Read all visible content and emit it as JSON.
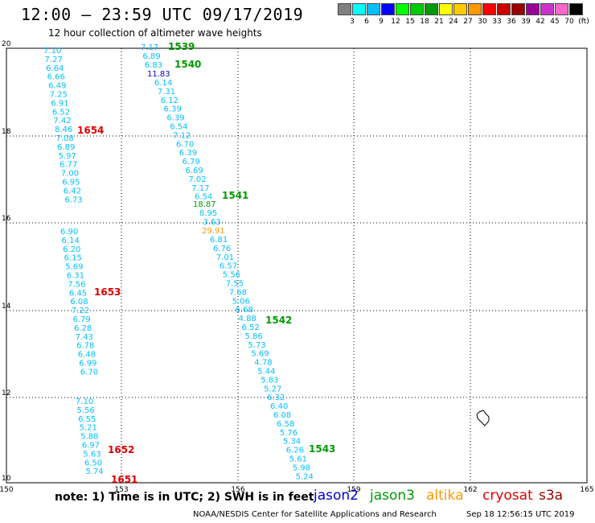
{
  "title": "12:00 – 23:59 UTC 09/17/2019",
  "subtitle": "12 hour collection of altimeter wave heights",
  "legend": {
    "colors": [
      "#808080",
      "#00ffff",
      "#00bfff",
      "#0000ff",
      "#00ff00",
      "#00cc00",
      "#009900",
      "#ffff00",
      "#ffcc00",
      "#ff9900",
      "#ff0000",
      "#cc0000",
      "#990000",
      "#990099",
      "#cc33cc",
      "#ff66cc",
      "#000000"
    ],
    "labels": [
      "3",
      "6",
      "9",
      "12",
      "15",
      "18",
      "21",
      "24",
      "27",
      "30",
      "33",
      "36",
      "39",
      "42",
      "45",
      "70",
      "(ft)"
    ]
  },
  "axes": {
    "lon_ticks": [
      "150",
      "153",
      "156",
      "159",
      "162",
      "165"
    ],
    "lat_ticks": [
      "20",
      "18",
      "16",
      "14",
      "12",
      "10"
    ]
  },
  "tracks": [
    {
      "color": "#00bfff",
      "values": [
        "7.10",
        "7.27",
        "6.64",
        "6.66",
        "6.49",
        "7.25",
        "6.91",
        "6.52",
        "7.42",
        "8.46",
        "7.08",
        "6.89",
        "5.97",
        "6.77",
        "7.00",
        "6.95",
        "6.42",
        "6.73"
      ]
    },
    {
      "color": "#00bfff",
      "values": [
        "6.90",
        "6.14",
        "6.20",
        "6.15",
        "5.69",
        "6.31",
        "7.56",
        "6.45",
        "6.08",
        "7.22",
        "6.79",
        "6.28",
        "7.43",
        "6.78",
        "6.48",
        "6.99",
        "6.70"
      ]
    },
    {
      "color": "#00bfff",
      "values": [
        "7.10",
        "5.56",
        "6.55",
        "5.21",
        "5.88",
        "6.97",
        "5.63",
        "6.50",
        "5.74"
      ]
    },
    {
      "color": "#00bfff",
      "values": [
        "7.17",
        "6.89",
        "6.83"
      ]
    },
    {
      "color": "#00bfff",
      "values": [
        "6.14",
        "7.31",
        "6.12",
        "6.39",
        "6.39",
        "6.54",
        "7.12",
        "6.70",
        "6.39",
        "6.79",
        "6.69",
        "7.02",
        "7.17",
        "6.54"
      ]
    },
    {
      "color": "#00bfff",
      "values": [
        "8.95",
        "3.63"
      ]
    },
    {
      "color": "#00bfff",
      "values": [
        "6.81",
        "6.76",
        "7.01",
        "6.57",
        "5.56",
        "7.55",
        "7.68",
        "5.06",
        "6.68",
        "4.88",
        "6.52",
        "5.86",
        "5.73",
        "5.69",
        "4.78",
        "5.44",
        "5.83",
        "5.27",
        "6.32",
        "6.40",
        "6.08",
        "6.58",
        "5.76",
        "5.34",
        "6.26",
        "5.61",
        "5.98",
        "5.24"
      ]
    }
  ],
  "special_values": [
    {
      "value": "11.83",
      "color": "#0000cc"
    },
    {
      "value": "18.87",
      "color": "#009900"
    },
    {
      "value": "29.91",
      "color": "#ff9900"
    }
  ],
  "times": [
    {
      "label": "1539",
      "color": "#009900"
    },
    {
      "label": "1540",
      "color": "#009900"
    },
    {
      "label": "1654",
      "color": "#dd0000"
    },
    {
      "label": "1541",
      "color": "#009900"
    },
    {
      "label": "1653",
      "color": "#dd0000"
    },
    {
      "label": "1542",
      "color": "#009900"
    },
    {
      "label": "1652",
      "color": "#dd0000"
    },
    {
      "label": "1543",
      "color": "#009900"
    },
    {
      "label": "1651",
      "color": "#dd0000"
    }
  ],
  "note": "note:  1) Time is in UTC;  2) SWH is in feet",
  "satellites": [
    {
      "name": "jason2",
      "color": "#0000cc"
    },
    {
      "name": "jason3",
      "color": "#009900"
    },
    {
      "name": "altika",
      "color": "#ff9900"
    },
    {
      "name": "cryosat",
      "color": "#dd0000"
    },
    {
      "name": "s3a",
      "color": "#990000"
    }
  ],
  "credit": "NOAA/NESDIS Center for Satellite Applications and Research",
  "timestamp": "Sep 18 12:56:15 UTC 2019"
}
